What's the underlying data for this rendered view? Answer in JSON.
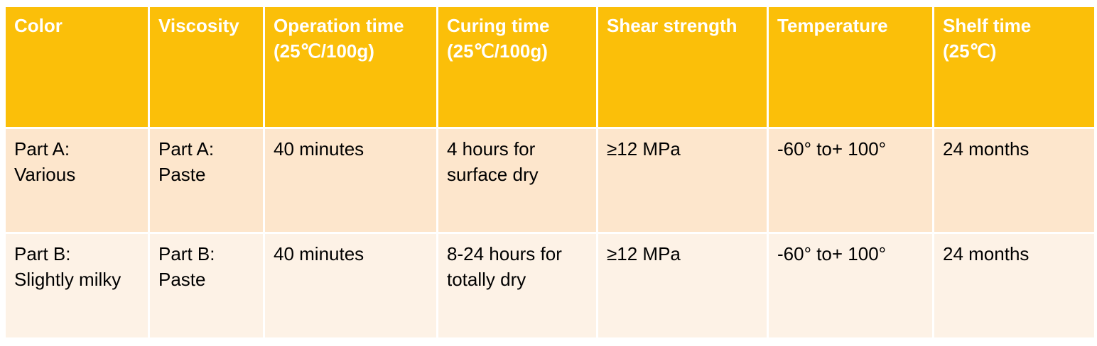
{
  "table": {
    "headers": [
      "Color",
      "Viscosity",
      "Operation time\n(25℃/100g)",
      "Curing time\n(25℃/100g)",
      "Shear strength",
      "Temperature",
      "Shelf time\n(25℃)"
    ],
    "rows": [
      [
        "Part A:\nVarious",
        "Part A:\nPaste",
        "40 minutes",
        "4 hours for\nsurface dry",
        "≥12 MPa",
        "-60° to+ 100°",
        "24 months"
      ],
      [
        "Part B:\nSlightly milky",
        "Part B:\nPaste",
        "40 minutes",
        "8-24 hours for\ntotally dry",
        "≥12 MPa",
        "-60° to+ 100°",
        "24 months"
      ]
    ]
  },
  "colors": {
    "header_background": "#fbbf09",
    "header_text": "#ffffff",
    "row_a_background": "#fde6cc",
    "row_b_background": "#fdf2e6"
  }
}
